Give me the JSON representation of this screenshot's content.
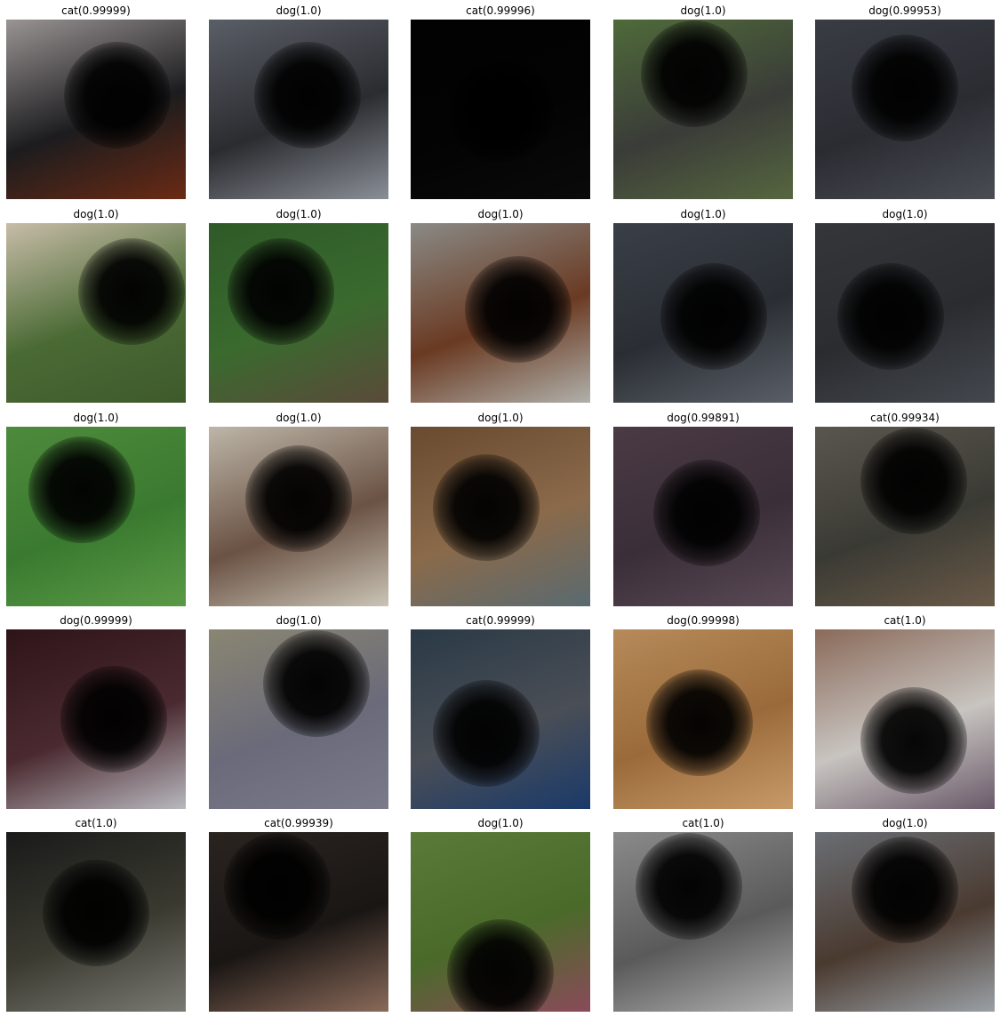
{
  "panels": [
    {
      "label": "cat(0.99999)",
      "colors": [
        "#9a9494",
        "#1c1c1e",
        "#6a2a14"
      ],
      "blur": [
        0.62,
        0.42
      ]
    },
    {
      "label": "dog(1.0)",
      "colors": [
        "#5a5e66",
        "#2a2c30",
        "#8a8e96"
      ],
      "blur": [
        0.55,
        0.42
      ]
    },
    {
      "label": "cat(0.99996)",
      "colors": [
        "#020202",
        "#030303",
        "#0a0a0a"
      ],
      "blur": [
        0.5,
        0.5
      ]
    },
    {
      "label": "dog(1.0)",
      "colors": [
        "#4f6a3a",
        "#3a3c38",
        "#566640"
      ],
      "blur": [
        0.45,
        0.3
      ]
    },
    {
      "label": "dog(0.99953)",
      "colors": [
        "#3a3c44",
        "#2a2c32",
        "#4a4c54"
      ],
      "blur": [
        0.5,
        0.38
      ]
    },
    {
      "label": "dog(1.0)",
      "colors": [
        "#c8bca8",
        "#4a6a34",
        "#3e5a2c"
      ],
      "blur": [
        0.7,
        0.38
      ]
    },
    {
      "label": "dog(1.0)",
      "colors": [
        "#2f5a28",
        "#3a6a2e",
        "#5a4a3a"
      ],
      "blur": [
        0.4,
        0.38
      ]
    },
    {
      "label": "dog(1.0)",
      "colors": [
        "#8a8a86",
        "#6a3a22",
        "#b0b0aa"
      ],
      "blur": [
        0.6,
        0.48
      ]
    },
    {
      "label": "dog(1.0)",
      "colors": [
        "#3a3e46",
        "#2a2e34",
        "#5a5e66"
      ],
      "blur": [
        0.56,
        0.52
      ]
    },
    {
      "label": "dog(1.0)",
      "colors": [
        "#34363a",
        "#2a2c30",
        "#44484e"
      ],
      "blur": [
        0.42,
        0.52
      ]
    },
    {
      "label": "dog(1.0)",
      "colors": [
        "#4e8a3c",
        "#3a7a30",
        "#5a9a46"
      ],
      "blur": [
        0.42,
        0.35
      ]
    },
    {
      "label": "dog(1.0)",
      "colors": [
        "#bdb6a8",
        "#6a5244",
        "#cac4b6"
      ],
      "blur": [
        0.5,
        0.4
      ]
    },
    {
      "label": "dog(1.0)",
      "colors": [
        "#6a4a30",
        "#8a6a4a",
        "#5a6a70"
      ],
      "blur": [
        0.42,
        0.45
      ]
    },
    {
      "label": "dog(0.99891)",
      "colors": [
        "#4a3a44",
        "#3a2e38",
        "#5a4a56"
      ],
      "blur": [
        0.52,
        0.48
      ]
    },
    {
      "label": "cat(0.99934)",
      "colors": [
        "#5a564e",
        "#3a3a34",
        "#6a5a48"
      ],
      "blur": [
        0.55,
        0.3
      ]
    },
    {
      "label": "dog(0.99999)",
      "colors": [
        "#2e1418",
        "#4a2a30",
        "#b8b8be"
      ],
      "blur": [
        0.6,
        0.5
      ]
    },
    {
      "label": "dog(1.0)",
      "colors": [
        "#8a8672",
        "#6a6a7a",
        "#7a7a8a"
      ],
      "blur": [
        0.6,
        0.3
      ]
    },
    {
      "label": "cat(0.99999)",
      "colors": [
        "#2a3a46",
        "#4a4e56",
        "#1a3a6a"
      ],
      "blur": [
        0.42,
        0.58
      ]
    },
    {
      "label": "dog(0.99998)",
      "colors": [
        "#b68a5a",
        "#9a6a3a",
        "#c89a6a"
      ],
      "blur": [
        0.48,
        0.52
      ]
    },
    {
      "label": "cat(1.0)",
      "colors": [
        "#8a6a5a",
        "#c8c4c0",
        "#6a5a6a"
      ],
      "blur": [
        0.55,
        0.62
      ]
    },
    {
      "label": "cat(1.0)",
      "colors": [
        "#1a1a1a",
        "#3a3a30",
        "#7a7a74"
      ],
      "blur": [
        0.5,
        0.45
      ]
    },
    {
      "label": "cat(0.99939)",
      "colors": [
        "#2a2420",
        "#1a1614",
        "#8a6a5a"
      ],
      "blur": [
        0.38,
        0.3
      ]
    },
    {
      "label": "dog(1.0)",
      "colors": [
        "#5a7a3a",
        "#4a6a2a",
        "#8a4a5a"
      ],
      "blur": [
        0.5,
        0.78
      ]
    },
    {
      "label": "cat(1.0)",
      "colors": [
        "#8a8a8a",
        "#5a5a5a",
        "#b0b0b0"
      ],
      "blur": [
        0.42,
        0.3
      ]
    },
    {
      "label": "dog(1.0)",
      "colors": [
        "#6a6e74",
        "#4a3a30",
        "#9aa0a6"
      ],
      "blur": [
        0.5,
        0.32
      ]
    }
  ]
}
